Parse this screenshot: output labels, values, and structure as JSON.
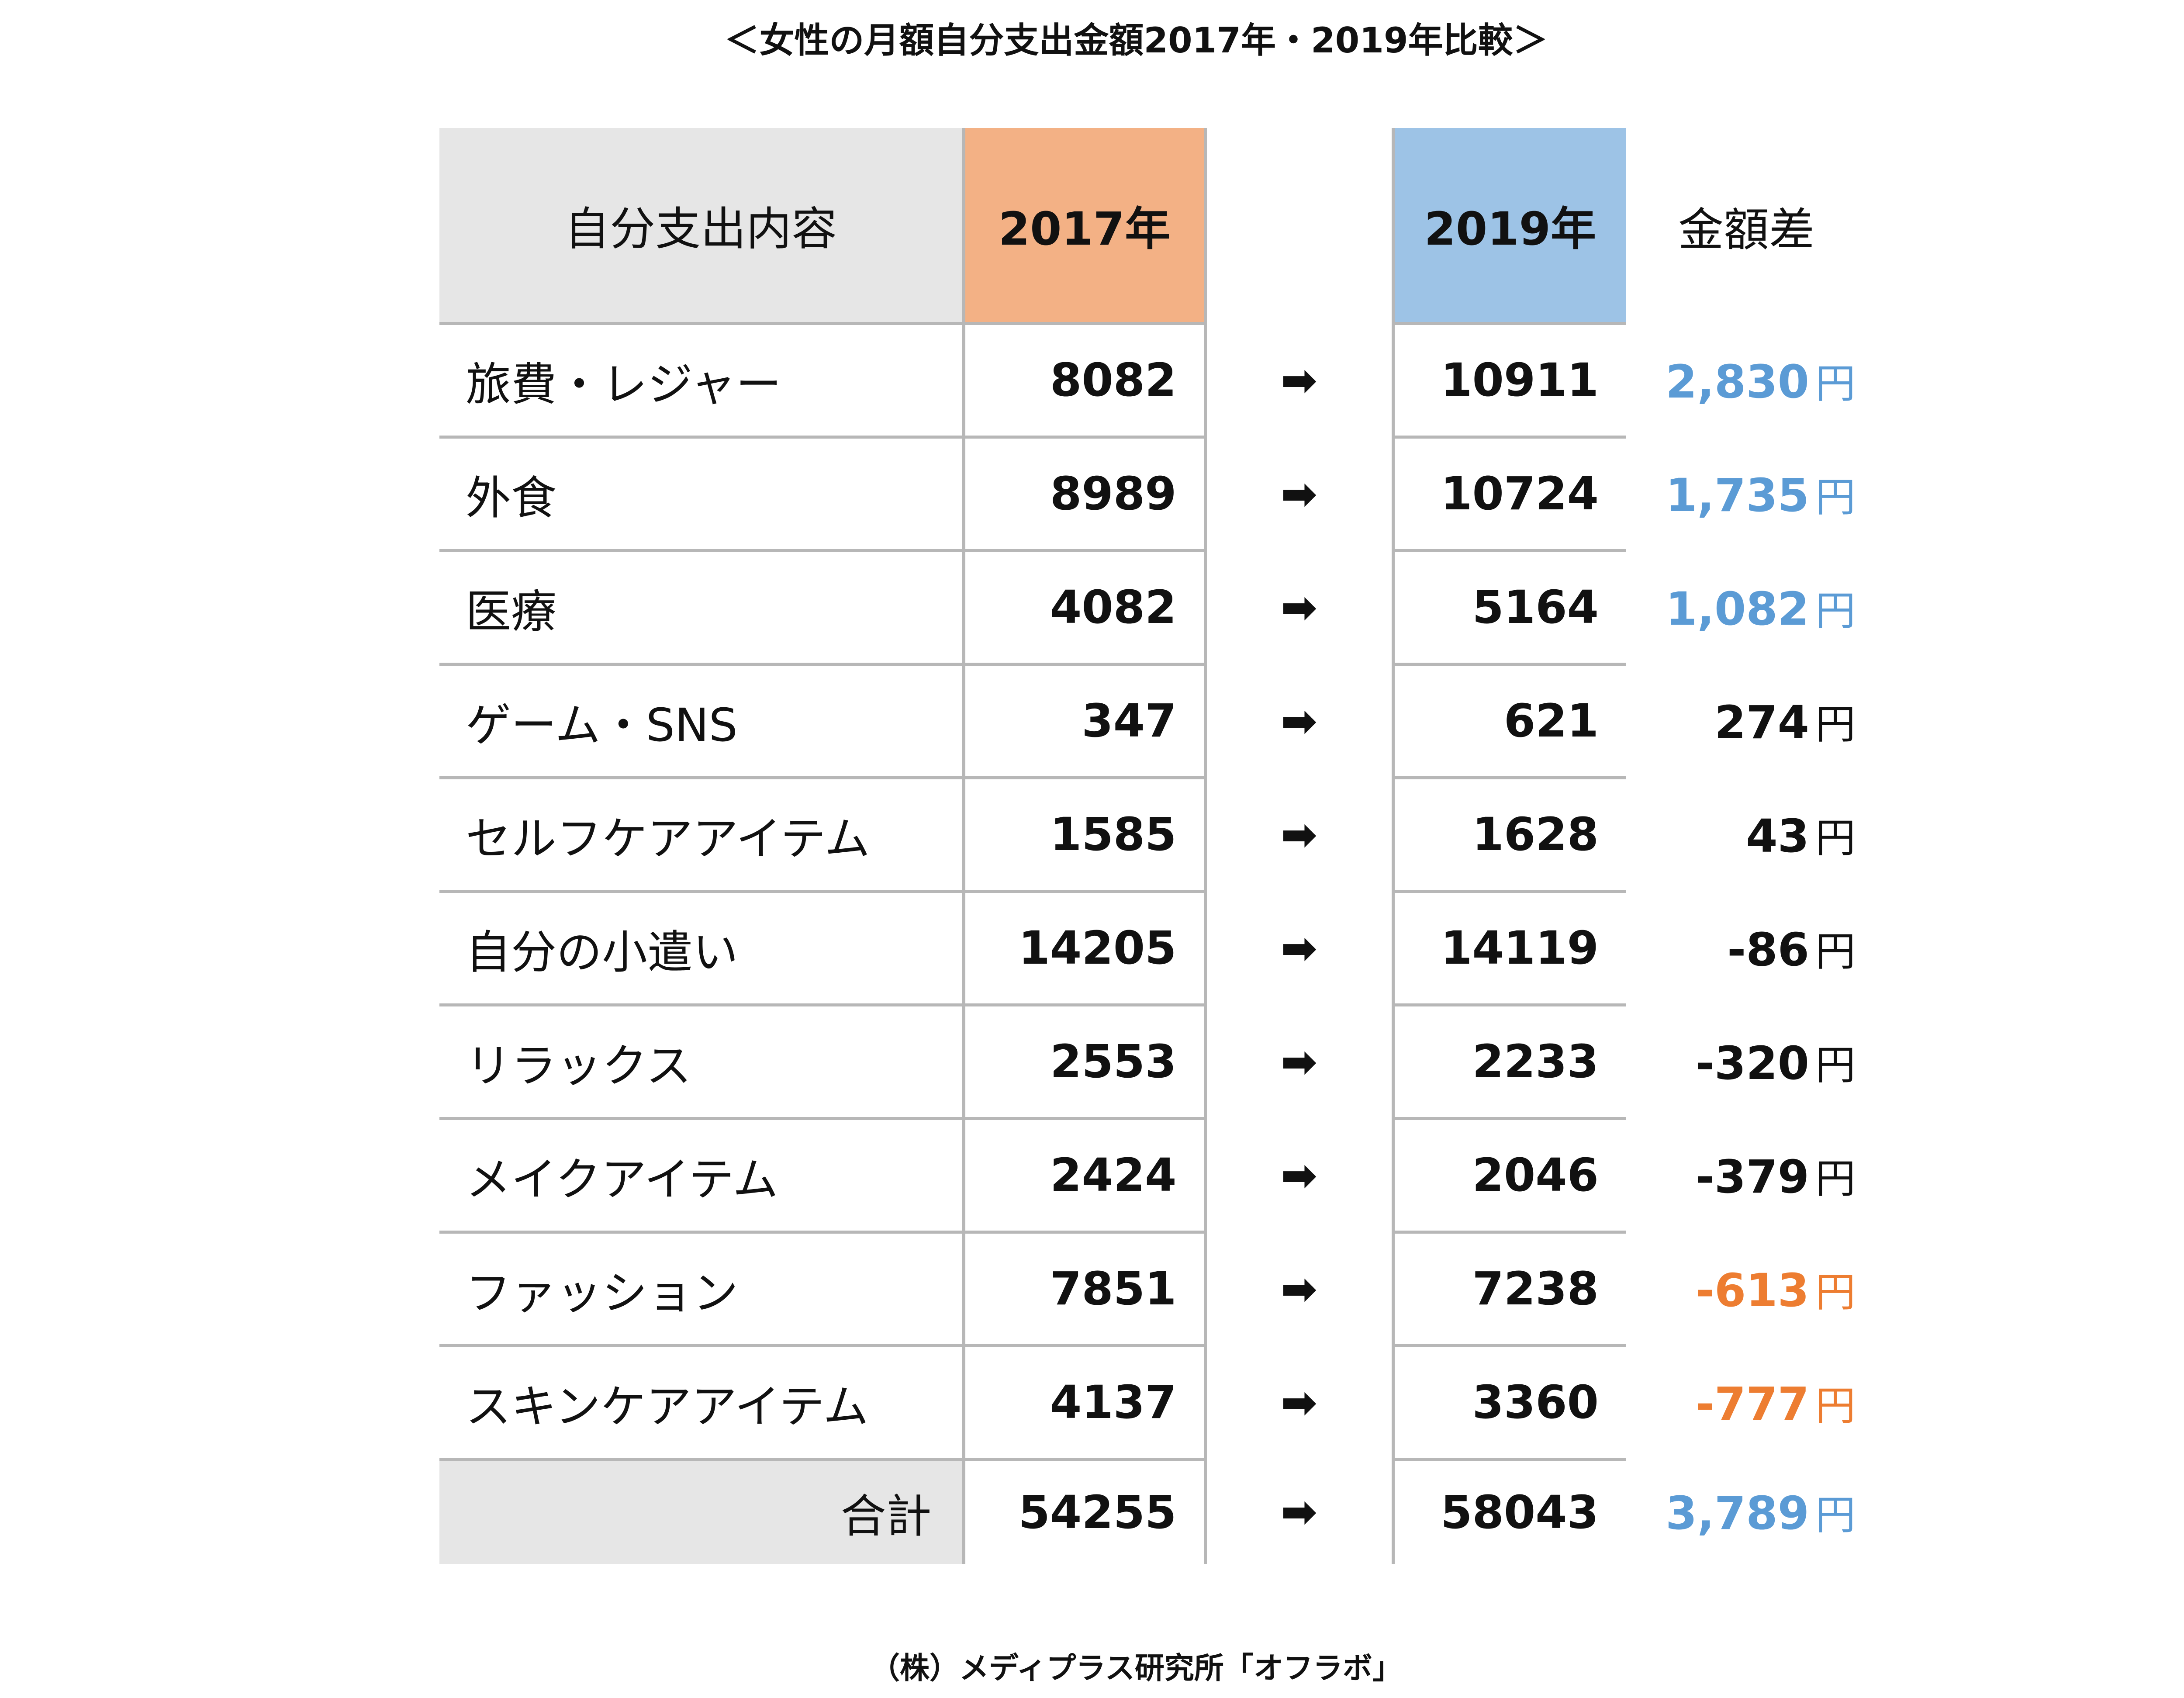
{
  "title": "＜女性の月額自分支出金額2017年・2019年比較＞",
  "header": {
    "category": "自分支出内容",
    "y2017": "2017年",
    "y2019": "2019年",
    "difference": "金額差"
  },
  "arrow_glyph": "➡",
  "yen_unit": "円",
  "rows": [
    {
      "category": "旅費・レジャー",
      "v2017": "8082",
      "v2019": "10911",
      "diff": "2,830",
      "diff_color": "#5b9bd5"
    },
    {
      "category": "外食",
      "v2017": "8989",
      "v2019": "10724",
      "diff": "1,735",
      "diff_color": "#5b9bd5"
    },
    {
      "category": "医療",
      "v2017": "4082",
      "v2019": "5164",
      "diff": "1,082",
      "diff_color": "#5b9bd5"
    },
    {
      "category": "ゲーム・SNS",
      "v2017": "347",
      "v2019": "621",
      "diff": "274",
      "diff_color": "#111111"
    },
    {
      "category": "セルフケアアイテム",
      "v2017": "1585",
      "v2019": "1628",
      "diff": "43",
      "diff_color": "#111111"
    },
    {
      "category": "自分の小遣い",
      "v2017": "14205",
      "v2019": "14119",
      "diff": "-86",
      "diff_color": "#111111"
    },
    {
      "category": "リラックス",
      "v2017": "2553",
      "v2019": "2233",
      "diff": "-320",
      "diff_color": "#111111"
    },
    {
      "category": "メイクアイテム",
      "v2017": "2424",
      "v2019": "2046",
      "diff": "-379",
      "diff_color": "#111111"
    },
    {
      "category": "ファッション",
      "v2017": "7851",
      "v2019": "7238",
      "diff": "-613",
      "diff_color": "#ed7d31"
    },
    {
      "category": "スキンケアアイテム",
      "v2017": "4137",
      "v2019": "3360",
      "diff": "-777",
      "diff_color": "#ed7d31"
    }
  ],
  "total": {
    "label": "合計",
    "v2017": "54255",
    "v2019": "58043",
    "diff": "3,789",
    "diff_color": "#5b9bd5"
  },
  "credit": "（株）メディプラス研究所「オフラボ」",
  "colors": {
    "header_2017_bg": "#f3b185",
    "header_2019_bg": "#9dc3e6",
    "header_category_bg": "#e6e6e6",
    "increase_text": "#5b9bd5",
    "decrease_text": "#ed7d31"
  }
}
